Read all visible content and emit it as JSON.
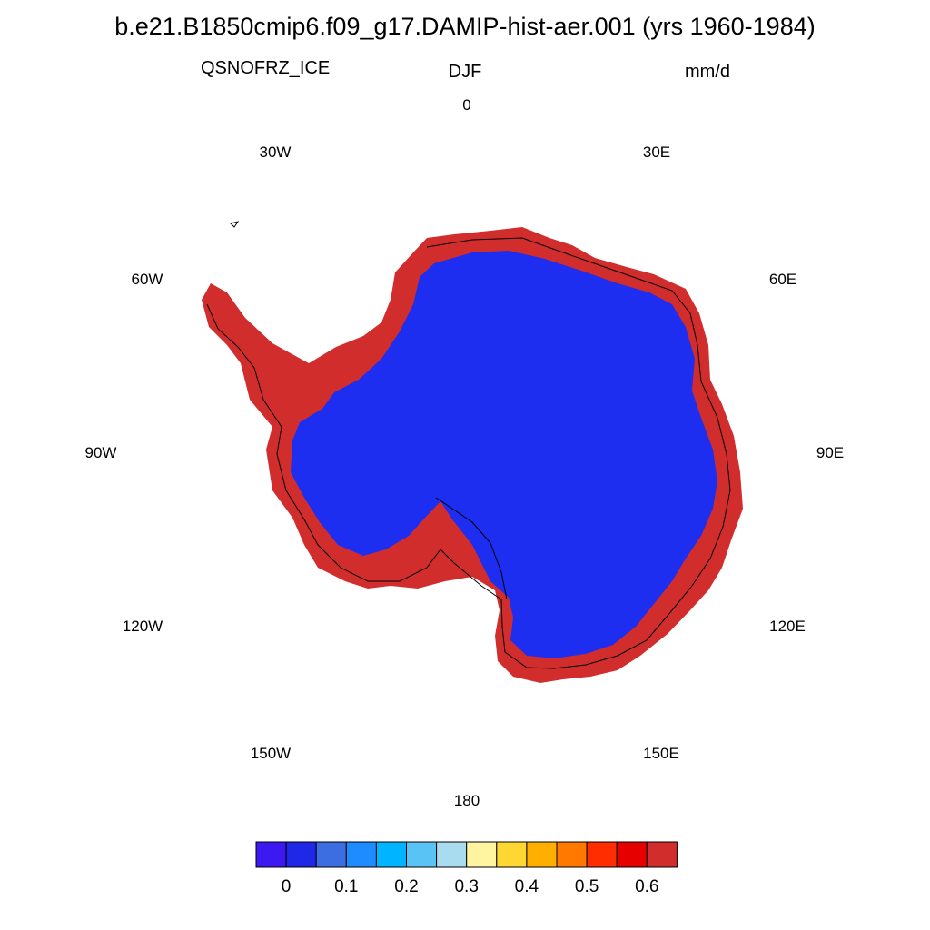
{
  "header": {
    "title": "b.e21.B1850cmip6.f09_g17.DAMIP-hist-aer.001 (yrs 1960-1984)",
    "variable": "QSNOFRZ_ICE",
    "season": "DJF",
    "units": "mm/d"
  },
  "longitude_labels": [
    "0",
    "30E",
    "60E",
    "90E",
    "120E",
    "150E",
    "180",
    "150W",
    "120W",
    "90W",
    "60W",
    "30W"
  ],
  "colorbar": {
    "colors": [
      "#3c19f0",
      "#1e28e6",
      "#3c6ee1",
      "#1e8cff",
      "#00b4ff",
      "#5ac3f5",
      "#aadcf0",
      "#fff5a0",
      "#ffd732",
      "#ffaf00",
      "#ff7800",
      "#ff2d00",
      "#e60000",
      "#d22d2d"
    ],
    "tick_labels": [
      "0",
      "0.1",
      "0.2",
      "0.3",
      "0.4",
      "0.5",
      "0.6"
    ]
  },
  "map": {
    "projection": "south polar stereographic",
    "interior_color": "#1e2ef0",
    "coast_color": "#d22d2d"
  }
}
